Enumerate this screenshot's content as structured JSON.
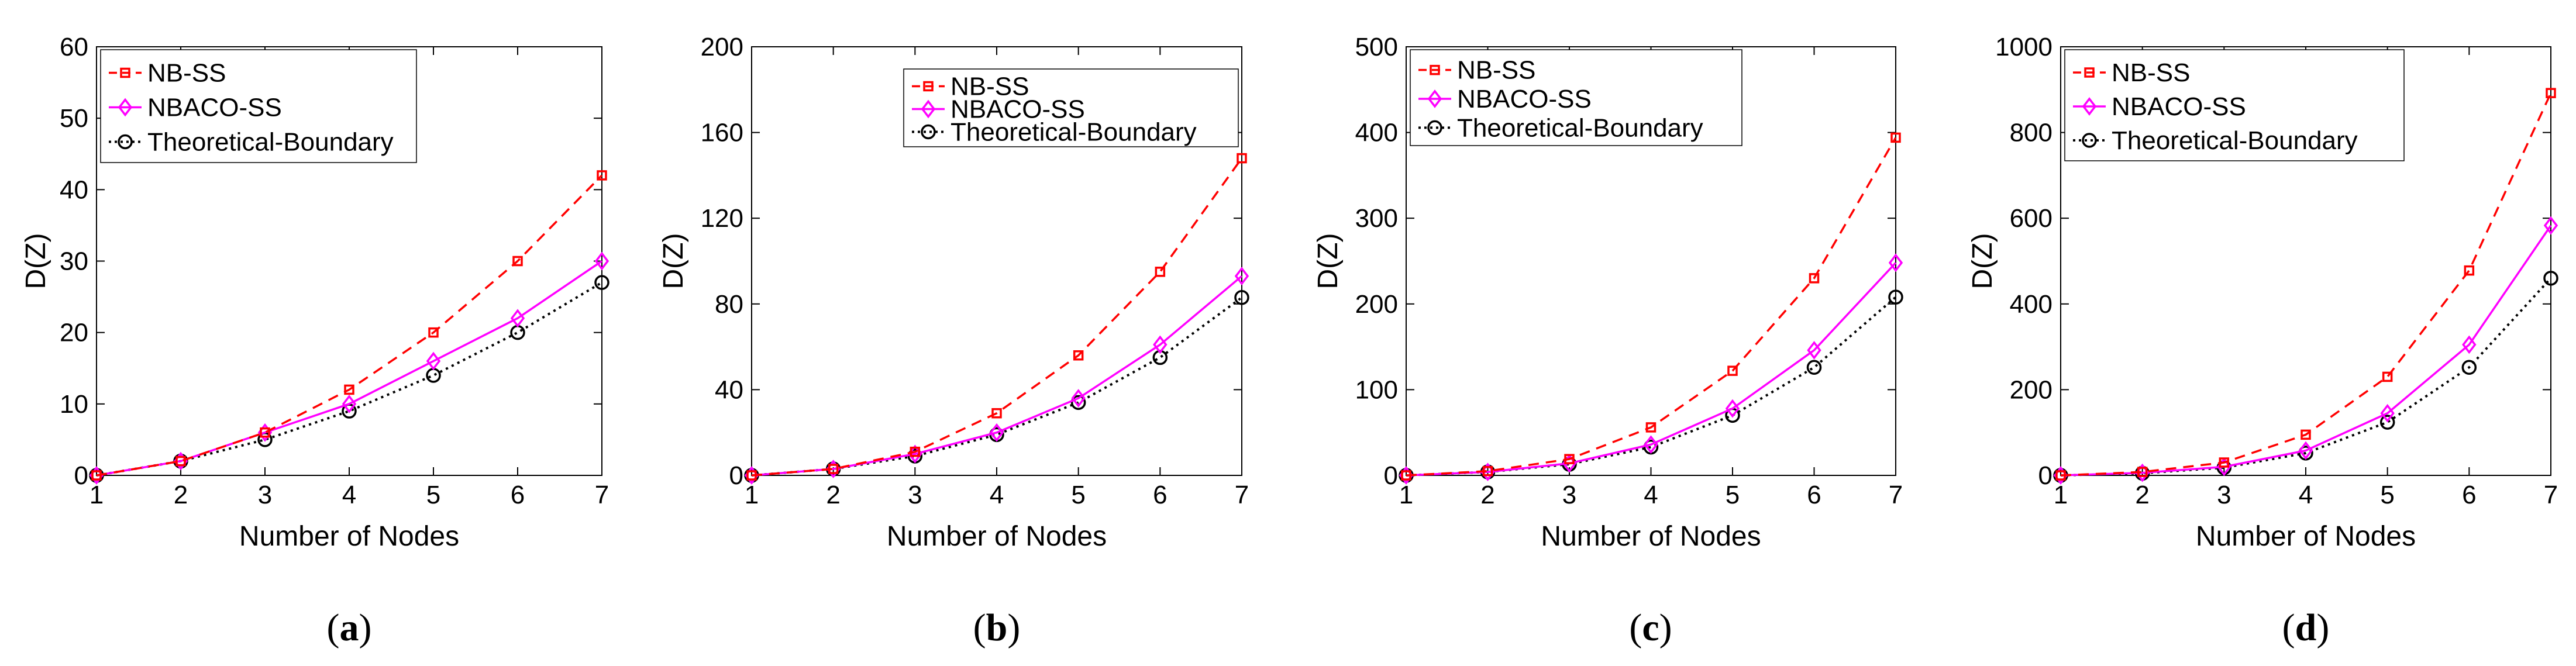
{
  "chart_data": [
    {
      "type": "line",
      "panel": "a",
      "caption_letter": "a",
      "xlabel": "Number of Nodes",
      "ylabel": "D(Z)",
      "x": [
        1,
        2,
        3,
        4,
        5,
        6,
        7
      ],
      "xlim": [
        1,
        7
      ],
      "ylim": [
        0,
        60
      ],
      "yticks": [
        0,
        10,
        20,
        30,
        40,
        50,
        60
      ],
      "grid": false,
      "legend_position": "top-left",
      "series": [
        {
          "name": "NB-SS",
          "values": [
            0,
            2,
            6,
            12,
            20,
            30,
            42
          ],
          "color": "#ff0000",
          "line": "dashed",
          "marker": "square"
        },
        {
          "name": "NBACO-SS",
          "values": [
            0,
            2,
            6,
            10,
            16,
            22,
            30
          ],
          "color": "#ff00ff",
          "line": "solid",
          "marker": "diamond"
        },
        {
          "name": "Theoretical-Boundary",
          "values": [
            0,
            2,
            5,
            9,
            14,
            20,
            27
          ],
          "color": "#000000",
          "line": "dotted",
          "marker": "circle"
        }
      ]
    },
    {
      "type": "line",
      "panel": "b",
      "caption_letter": "b",
      "xlabel": "Number of Nodes",
      "ylabel": "D(Z)",
      "x": [
        1,
        2,
        3,
        4,
        5,
        6,
        7
      ],
      "xlim": [
        1,
        7
      ],
      "ylim": [
        0,
        200
      ],
      "yticks": [
        0,
        40,
        80,
        120,
        160,
        200
      ],
      "grid": false,
      "legend_position": "top-right",
      "series": [
        {
          "name": "NB-SS",
          "values": [
            0,
            3,
            11,
            29,
            56,
            95,
            148
          ],
          "color": "#ff0000",
          "line": "dashed",
          "marker": "square"
        },
        {
          "name": "NBACO-SS",
          "values": [
            0,
            3,
            10,
            20,
            36,
            61,
            93
          ],
          "color": "#ff00ff",
          "line": "solid",
          "marker": "diamond"
        },
        {
          "name": "Theoretical-Boundary",
          "values": [
            0,
            3,
            9,
            19,
            34,
            55,
            83
          ],
          "color": "#000000",
          "line": "dotted",
          "marker": "circle"
        }
      ]
    },
    {
      "type": "line",
      "panel": "c",
      "caption_letter": "c",
      "xlabel": "Number of Nodes",
      "ylabel": "D(Z)",
      "x": [
        1,
        2,
        3,
        4,
        5,
        6,
        7
      ],
      "xlim": [
        1,
        7
      ],
      "ylim": [
        0,
        500
      ],
      "yticks": [
        0,
        100,
        200,
        300,
        400,
        500
      ],
      "grid": false,
      "legend_position": "top-left",
      "series": [
        {
          "name": "NB-SS",
          "values": [
            0,
            5,
            19,
            56,
            122,
            230,
            394
          ],
          "color": "#ff0000",
          "line": "dashed",
          "marker": "square"
        },
        {
          "name": "NBACO-SS",
          "values": [
            0,
            4,
            14,
            36,
            78,
            146,
            248
          ],
          "color": "#ff00ff",
          "line": "solid",
          "marker": "diamond"
        },
        {
          "name": "Theoretical-Boundary",
          "values": [
            0,
            4,
            13,
            33,
            70,
            126,
            208
          ],
          "color": "#000000",
          "line": "dotted",
          "marker": "circle"
        }
      ]
    },
    {
      "type": "line",
      "panel": "d",
      "caption_letter": "d",
      "xlabel": "Number of Nodes",
      "ylabel": "D(Z)",
      "x": [
        1,
        2,
        3,
        4,
        5,
        6,
        7
      ],
      "xlim": [
        1,
        7
      ],
      "ylim": [
        0,
        1000
      ],
      "yticks": [
        0,
        200,
        400,
        600,
        800,
        1000
      ],
      "grid": false,
      "legend_position": "top-left",
      "series": [
        {
          "name": "NB-SS",
          "values": [
            0,
            8,
            30,
            95,
            230,
            478,
            892
          ],
          "color": "#ff0000",
          "line": "dashed",
          "marker": "square"
        },
        {
          "name": "NBACO-SS",
          "values": [
            0,
            6,
            20,
            58,
            145,
            305,
            583
          ],
          "color": "#ff00ff",
          "line": "solid",
          "marker": "diamond"
        },
        {
          "name": "Theoretical-Boundary",
          "values": [
            0,
            5,
            18,
            52,
            124,
            252,
            460
          ],
          "color": "#000000",
          "line": "dotted",
          "marker": "circle"
        }
      ]
    }
  ]
}
